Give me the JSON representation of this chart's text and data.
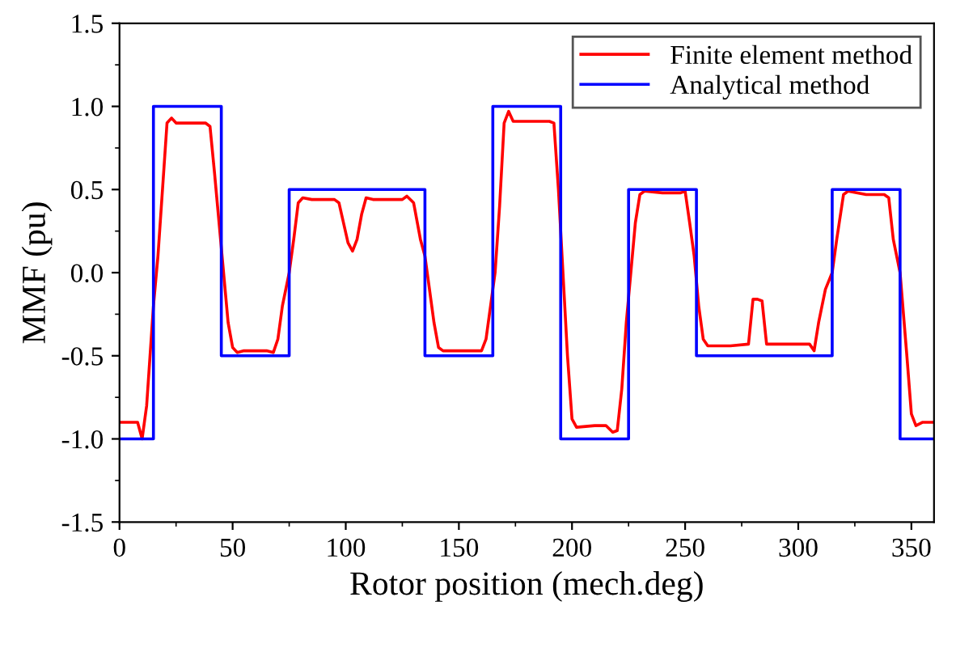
{
  "chart_data": {
    "type": "line",
    "xlabel": "Rotor position (mech.deg)",
    "ylabel": "MMF (pu)",
    "xlim": [
      0,
      360
    ],
    "xticks": [
      0,
      50,
      100,
      150,
      200,
      250,
      300,
      350
    ],
    "ylim": [
      -1.5,
      1.5
    ],
    "yticks": [
      {
        "value": -1.5,
        "label": "-1.5"
      },
      {
        "value": -1.0,
        "label": "-1.0"
      },
      {
        "value": -0.5,
        "label": "-0.5"
      },
      {
        "value": 0.0,
        "label": "0.0"
      },
      {
        "value": 0.5,
        "label": "0.5"
      },
      {
        "value": 1.0,
        "label": "1.0"
      },
      {
        "value": 1.5,
        "label": "1.5"
      }
    ],
    "legend": "top right",
    "grid": false,
    "series": [
      {
        "name": "Finite element method",
        "color": "#ff0000",
        "x": [
          0,
          5,
          8,
          10,
          12,
          14,
          15,
          17,
          19,
          21,
          23,
          25,
          30,
          35,
          38,
          40,
          42,
          44,
          46,
          48,
          50,
          52,
          55,
          60,
          65,
          68,
          70,
          72,
          75,
          77,
          79,
          81,
          85,
          90,
          95,
          97,
          99,
          101,
          103,
          105,
          107,
          109,
          112,
          120,
          125,
          127,
          130,
          133,
          135,
          137,
          139,
          141,
          143,
          150,
          158,
          160,
          162,
          164,
          166,
          168,
          170,
          172,
          174,
          180,
          190,
          192,
          194,
          196,
          198,
          200,
          202,
          210,
          215,
          218,
          220,
          222,
          224,
          226,
          228,
          230,
          232,
          240,
          248,
          250,
          252,
          254,
          256,
          258,
          260,
          270,
          278,
          280,
          282,
          284,
          286,
          295,
          305,
          307,
          309,
          312,
          315,
          317,
          320,
          322,
          330,
          338,
          340,
          342,
          345,
          348,
          350,
          352,
          355,
          360
        ],
        "values": [
          -0.9,
          -0.9,
          -0.9,
          -1.0,
          -0.8,
          -0.4,
          -0.2,
          0.1,
          0.5,
          0.9,
          0.93,
          0.9,
          0.9,
          0.9,
          0.9,
          0.88,
          0.6,
          0.3,
          0.0,
          -0.3,
          -0.45,
          -0.48,
          -0.47,
          -0.47,
          -0.47,
          -0.48,
          -0.4,
          -0.2,
          0.0,
          0.2,
          0.42,
          0.45,
          0.44,
          0.44,
          0.44,
          0.42,
          0.3,
          0.18,
          0.13,
          0.2,
          0.35,
          0.45,
          0.44,
          0.44,
          0.44,
          0.46,
          0.42,
          0.2,
          0.1,
          -0.1,
          -0.3,
          -0.45,
          -0.47,
          -0.47,
          -0.47,
          -0.47,
          -0.4,
          -0.2,
          0.0,
          0.4,
          0.9,
          0.97,
          0.91,
          0.91,
          0.91,
          0.9,
          0.5,
          0.0,
          -0.5,
          -0.88,
          -0.93,
          -0.92,
          -0.92,
          -0.96,
          -0.95,
          -0.7,
          -0.3,
          0.0,
          0.3,
          0.47,
          0.49,
          0.48,
          0.48,
          0.49,
          0.3,
          0.1,
          -0.2,
          -0.4,
          -0.44,
          -0.44,
          -0.43,
          -0.16,
          -0.16,
          -0.17,
          -0.43,
          -0.43,
          -0.43,
          -0.47,
          -0.3,
          -0.1,
          0.0,
          0.2,
          0.47,
          0.49,
          0.47,
          0.47,
          0.45,
          0.2,
          0.0,
          -0.5,
          -0.85,
          -0.92,
          -0.9,
          -0.9
        ]
      },
      {
        "name": "Analytical method",
        "color": "#0000ff",
        "type": "step",
        "x": [
          0,
          15,
          45,
          75,
          135,
          165,
          195,
          225,
          255,
          315,
          345,
          360
        ],
        "values": [
          -1,
          1,
          -0.5,
          0.5,
          -0.5,
          1,
          -1,
          0.5,
          -0.5,
          0.5,
          -1,
          -1
        ]
      }
    ]
  }
}
